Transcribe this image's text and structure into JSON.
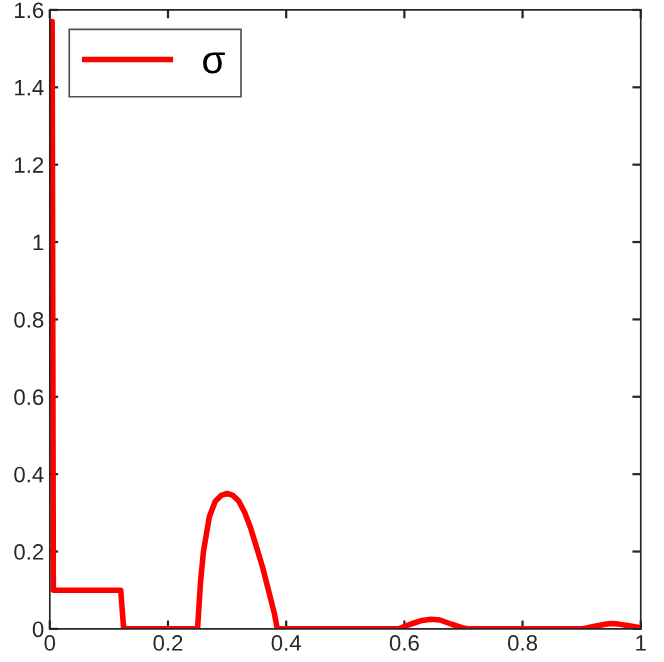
{
  "chart_data": {
    "type": "line",
    "series": [
      {
        "name": "σ",
        "color": "#ff0000",
        "x": [
          0,
          0.004,
          0.006,
          0.12,
          0.125,
          0.25,
          0.255,
          0.26,
          0.27,
          0.28,
          0.29,
          0.3,
          0.31,
          0.32,
          0.33,
          0.34,
          0.35,
          0.36,
          0.37,
          0.38,
          0.385,
          0.59,
          0.61,
          0.63,
          0.645,
          0.66,
          0.68,
          0.7,
          0.71,
          0.9,
          0.92,
          0.94,
          0.95,
          0.96,
          0.98,
          1.0
        ],
        "values": [
          1.57,
          1.57,
          0.1,
          0.1,
          0,
          0,
          0.12,
          0.2,
          0.29,
          0.33,
          0.345,
          0.35,
          0.345,
          0.33,
          0.3,
          0.26,
          0.21,
          0.16,
          0.1,
          0.04,
          0,
          0,
          0.012,
          0.022,
          0.025,
          0.023,
          0.012,
          0.002,
          0,
          0,
          0.006,
          0.012,
          0.014,
          0.013,
          0.008,
          0.003
        ]
      }
    ],
    "xlim": [
      0,
      1
    ],
    "ylim": [
      0,
      1.6
    ],
    "xticks": [
      0,
      0.2,
      0.4,
      0.6,
      0.8,
      1
    ],
    "yticks": [
      0,
      0.2,
      0.4,
      0.6,
      0.8,
      1,
      1.2,
      1.4,
      1.6
    ],
    "legend": "top left",
    "grid": false,
    "line_style": "solid",
    "marker": "none"
  }
}
